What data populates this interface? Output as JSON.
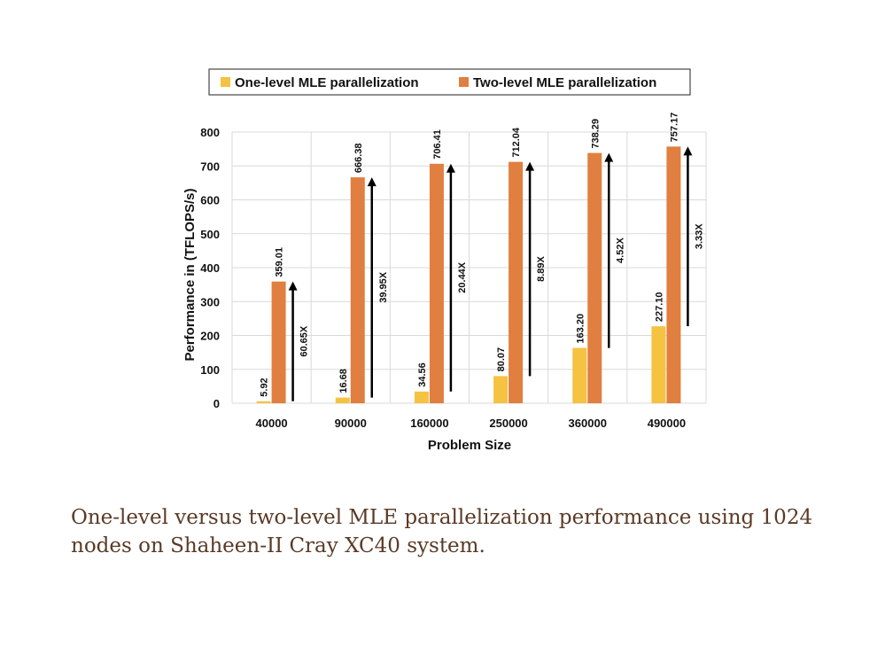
{
  "chart_data": {
    "type": "bar",
    "categories": [
      "40000",
      "90000",
      "160000",
      "250000",
      "360000",
      "490000"
    ],
    "series": [
      {
        "name": "One-level MLE parallelization",
        "values": [
          5.92,
          16.68,
          34.56,
          80.07,
          163.2,
          227.1
        ],
        "labels": [
          "5.92",
          "16.68",
          "34.56",
          "80.07",
          "163.20",
          "227.10"
        ],
        "color": "#F5C242"
      },
      {
        "name": "Two-level MLE parallelization",
        "values": [
          359.01,
          666.38,
          706.41,
          712.04,
          738.29,
          757.17
        ],
        "labels": [
          "359.01",
          "666.38",
          "706.41",
          "712.04",
          "738.29",
          "757.17"
        ],
        "color": "#E07F3F"
      }
    ],
    "annotations": [
      "60.65X",
      "39.95X",
      "20.44X",
      "8.89X",
      "4.52X",
      "3.33X"
    ],
    "xlabel": "Problem Size",
    "ylabel": "Performance in (TFLOPS/s)",
    "ylim": [
      0,
      800
    ],
    "yticks": [
      "0",
      "100",
      "200",
      "300",
      "400",
      "500",
      "600",
      "700",
      "800"
    ],
    "grid": true,
    "legend_placement": "top-center"
  },
  "caption": "One-level versus two-level MLE parallelization performance using 1024 nodes on Shaheen-II Cray XC40 system.",
  "colors": {
    "grid": "#d9d9d9",
    "arrow": "#000000",
    "caption": "#5a3a26"
  }
}
